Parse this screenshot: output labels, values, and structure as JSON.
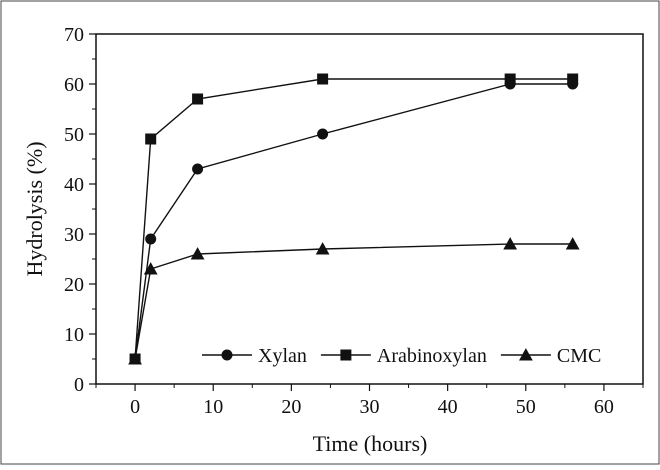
{
  "chart_data": {
    "type": "line",
    "xlabel": "Time (hours)",
    "ylabel": "Hydrolysis (%)",
    "xlim": [
      -5,
      65
    ],
    "ylim": [
      0,
      70
    ],
    "x_ticks": [
      0,
      10,
      20,
      30,
      40,
      50,
      60
    ],
    "y_ticks": [
      0,
      10,
      20,
      30,
      40,
      50,
      60,
      70
    ],
    "grid": false,
    "legend_position": "bottom-right",
    "series": [
      {
        "name": "Xylan",
        "marker": "circle",
        "color": "#111111",
        "x": [
          0,
          2,
          8,
          24,
          48,
          56
        ],
        "y": [
          5,
          29,
          43,
          50,
          60,
          60
        ]
      },
      {
        "name": "Arabinoxylan",
        "marker": "square",
        "color": "#111111",
        "x": [
          0,
          2,
          8,
          24,
          48,
          56
        ],
        "y": [
          5,
          49,
          57,
          61,
          61,
          61
        ]
      },
      {
        "name": "CMC",
        "marker": "triangle",
        "color": "#111111",
        "x": [
          0,
          2,
          8,
          24,
          48,
          56
        ],
        "y": [
          5,
          23,
          26,
          27,
          28,
          28
        ]
      }
    ]
  }
}
